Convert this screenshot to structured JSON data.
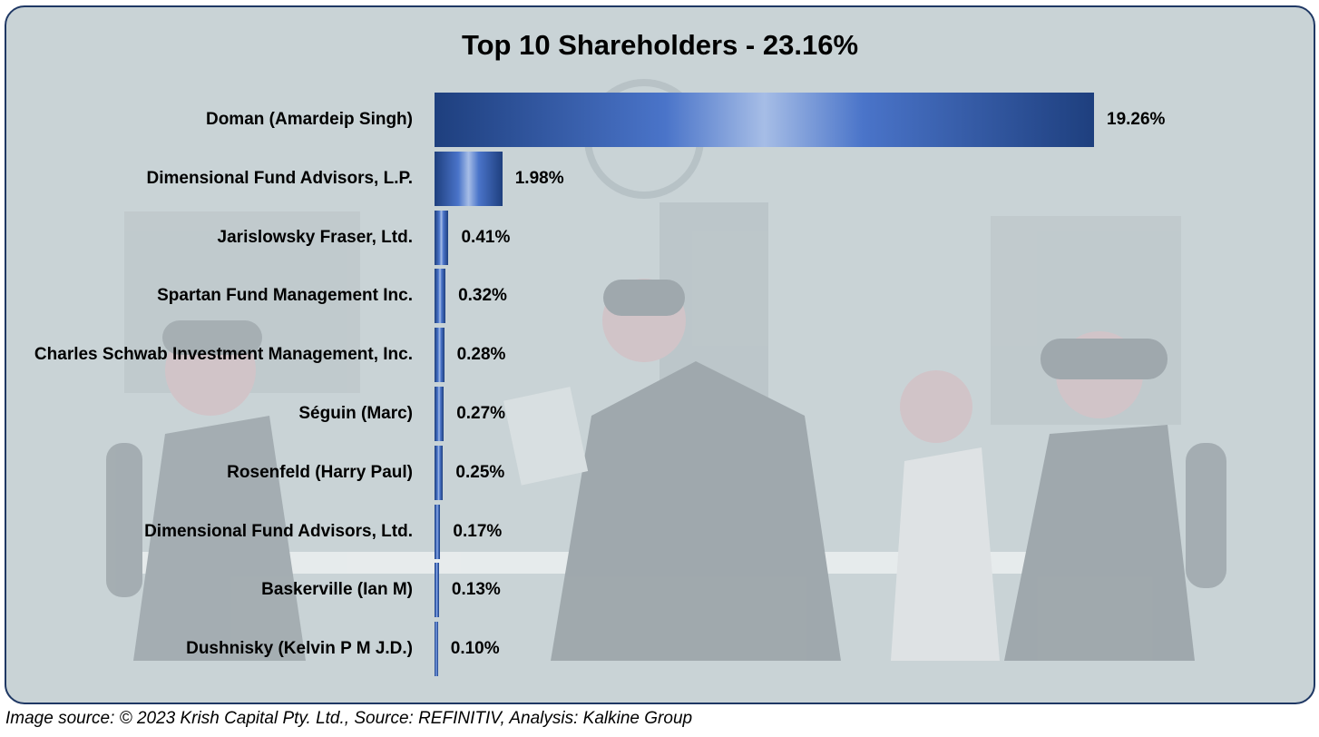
{
  "chart_data": {
    "type": "bar",
    "orientation": "horizontal",
    "title": "Top 10 Shareholders - 23.16%",
    "categories": [
      "Doman (Amardeip Singh)",
      "Dimensional Fund Advisors, L.P.",
      "Jarislowsky Fraser, Ltd.",
      "Spartan Fund Management Inc.",
      "Charles Schwab Investment Management, Inc.",
      "Séguin (Marc)",
      "Rosenfeld (Harry Paul)",
      "Dimensional Fund Advisors, Ltd.",
      "Baskerville (Ian M)",
      "Dushnisky (Kelvin P M J.D.)"
    ],
    "values": [
      19.26,
      1.98,
      0.41,
      0.32,
      0.28,
      0.27,
      0.25,
      0.17,
      0.13,
      0.1
    ],
    "value_labels": [
      "19.26%",
      "1.98%",
      "0.41%",
      "0.32%",
      "0.28%",
      "0.27%",
      "0.25%",
      "0.17%",
      "0.13%",
      "0.10%"
    ],
    "unit": "%",
    "bar_colors": [
      "#1e3f7e",
      "#4a74c9",
      "#a6bde6"
    ],
    "grid": false,
    "legend": "none"
  },
  "caption": "Image source: © 2023 Krish Capital Pty. Ltd., Source: REFINITIV, Analysis: Kalkine Group",
  "colors": {
    "frame_border": "#1f3864",
    "panel_background": "#c9d3d6"
  }
}
